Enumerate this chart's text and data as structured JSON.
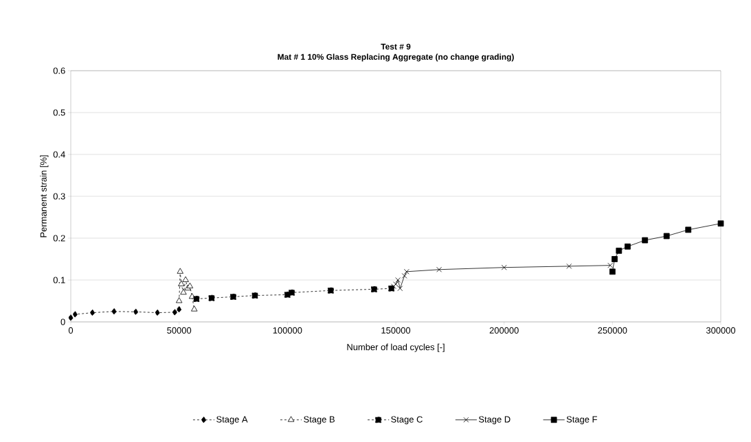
{
  "chart_data": {
    "type": "line",
    "title": "Test # 9",
    "subtitle": "Mat # 1 10% Glass Replacing Aggregate (no change grading)",
    "xlabel": "Number of load cycles [-]",
    "ylabel": "Permanent strain [%]",
    "xlim": [
      0,
      300000
    ],
    "ylim": [
      0,
      0.6
    ],
    "xticks": [
      0,
      50000,
      100000,
      150000,
      200000,
      250000,
      300000
    ],
    "yticks": [
      0,
      0.1,
      0.2,
      0.3,
      0.4,
      0.5,
      0.6
    ],
    "grid": "y",
    "legend": "bottom",
    "series": [
      {
        "name": "Stage A",
        "color": "#000000",
        "marker": "diamond",
        "line_style": "dashed",
        "x": [
          0,
          2000,
          10000,
          20000,
          30000,
          40000,
          48000,
          50000
        ],
        "values": [
          0.01,
          0.018,
          0.022,
          0.025,
          0.024,
          0.022,
          0.023,
          0.03
        ]
      },
      {
        "name": "Stage B",
        "color": "#000000",
        "marker": "triangle",
        "line_style": "dashed",
        "x": [
          50000,
          50500,
          51000,
          52000,
          53000,
          54000,
          55000,
          56000,
          57000
        ],
        "values": [
          0.05,
          0.12,
          0.09,
          0.07,
          0.1,
          0.08,
          0.085,
          0.06,
          0.03
        ]
      },
      {
        "name": "Stage C",
        "color": "#000000",
        "marker": "square",
        "line_style": "dashed",
        "x": [
          58000,
          65000,
          75000,
          85000,
          100000,
          102000,
          120000,
          140000,
          148000
        ],
        "values": [
          0.055,
          0.057,
          0.06,
          0.063,
          0.065,
          0.07,
          0.075,
          0.078,
          0.08
        ]
      },
      {
        "name": "Stage D",
        "color": "#000000",
        "marker": "cross",
        "line_style": "solid",
        "x": [
          149000,
          150000,
          151000,
          152000,
          154000,
          155000,
          170000,
          200000,
          230000,
          249000
        ],
        "values": [
          0.085,
          0.09,
          0.1,
          0.08,
          0.11,
          0.12,
          0.125,
          0.13,
          0.133,
          0.135
        ]
      },
      {
        "name": "Stage F",
        "color": "#000000",
        "marker": "square",
        "line_style": "solid",
        "x": [
          250000,
          251000,
          253000,
          257000,
          265000,
          275000,
          285000,
          300000
        ],
        "values": [
          0.12,
          0.15,
          0.17,
          0.18,
          0.195,
          0.205,
          0.22,
          0.235
        ]
      }
    ]
  }
}
